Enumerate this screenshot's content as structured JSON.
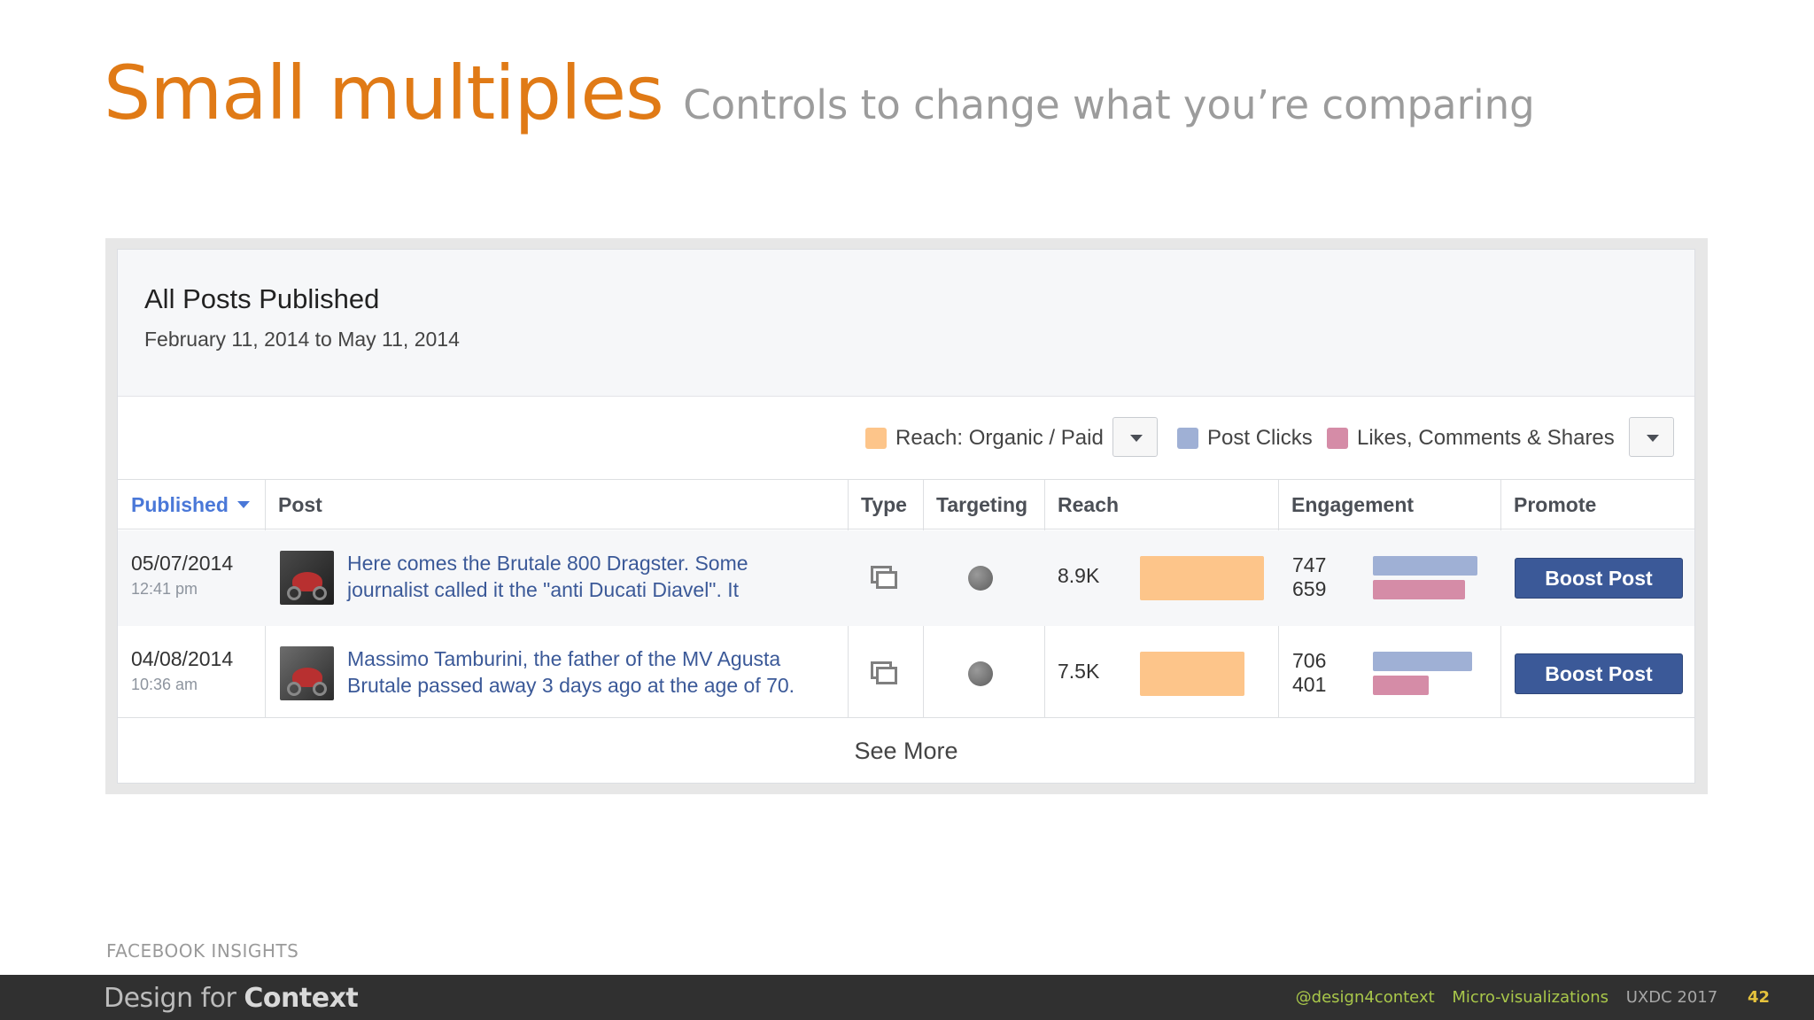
{
  "slide": {
    "title": "Small multiples",
    "subtitle": "Controls to change what you’re comparing",
    "source_note": "FACEBOOK INSIGHTS"
  },
  "panel": {
    "title": "All Posts Published",
    "date_range": "February 11, 2014 to May 11, 2014"
  },
  "legend": {
    "reach_label": "Reach: Organic / Paid",
    "clicks_label": "Post Clicks",
    "engagement_label": "Likes, Comments & Shares"
  },
  "colors": {
    "reach": "#fdc58a",
    "post_clicks": "#9fb0d5",
    "likes_comments_shares": "#d58ca7",
    "boost_button": "#3b5998",
    "title_accent": "#e07a16"
  },
  "columns": {
    "published": "Published",
    "post": "Post",
    "type": "Type",
    "targeting": "Targeting",
    "reach": "Reach",
    "engagement": "Engagement",
    "promote": "Promote"
  },
  "rows": [
    {
      "date": "05/07/2014",
      "time": "12:41 pm",
      "post_text": "Here comes the Brutale 800 Dragster. Some journalist called it the \"anti Ducati Diavel\". It",
      "type_icon": "multi-photo-icon",
      "targeting_icon": "globe-icon",
      "reach_label": "8.9K",
      "reach_value": 8900,
      "clicks": "747",
      "clicks_value": 747,
      "likes": "659",
      "likes_value": 659,
      "boost_label": "Boost Post"
    },
    {
      "date": "04/08/2014",
      "time": "10:36 am",
      "post_text": "Massimo Tamburini, the father of the MV Agusta Brutale passed away 3 days ago at the age of 70.",
      "type_icon": "multi-photo-icon",
      "targeting_icon": "globe-icon",
      "reach_label": "7.5K",
      "reach_value": 7500,
      "clicks": "706",
      "clicks_value": 706,
      "likes": "401",
      "likes_value": 401,
      "boost_label": "Boost Post"
    }
  ],
  "see_more": "See More",
  "footer": {
    "brand_light": "Design for ",
    "brand_bold": "Context",
    "handle": "@design4context",
    "topic": "Micro-visualizations",
    "event": "UXDC 2017",
    "page_number": "42"
  }
}
